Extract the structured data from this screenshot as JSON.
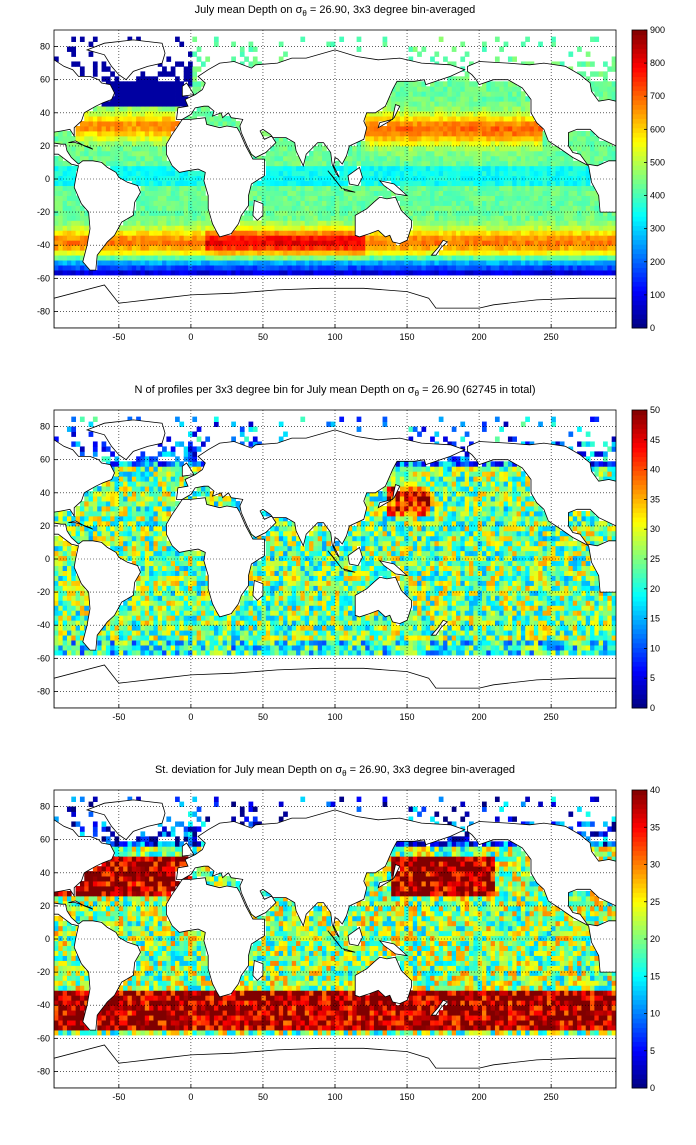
{
  "panels": [
    {
      "title_pre": "July mean Depth on σ",
      "title_sub": "θ",
      "title_post": " = 26.90, 3x3 degree bin-averaged"
    },
    {
      "title_pre": "N of profiles per 3x3 degree bin for July mean Depth on σ",
      "title_sub": "θ",
      "title_post": " = 26.90 (62745 in total)"
    },
    {
      "title_pre": "St. deviation for July mean Depth on σ",
      "title_sub": "θ",
      "title_post": " = 26.90, 3x3 degree bin-averaged"
    }
  ],
  "chart_data": [
    {
      "type": "heatmap",
      "variable": "mean_depth",
      "xlim": [
        -95,
        295
      ],
      "ylim": [
        -90,
        90
      ],
      "xticks": [
        -50,
        0,
        50,
        100,
        150,
        200,
        250
      ],
      "yticks": [
        -80,
        -60,
        -40,
        -20,
        0,
        20,
        40,
        60,
        80
      ],
      "grid": true,
      "colormap": "jet",
      "colorbar": {
        "min": 0,
        "max": 900,
        "ticks": [
          0,
          100,
          200,
          300,
          400,
          500,
          600,
          700,
          800,
          900
        ]
      },
      "bin_size_deg": 3
    },
    {
      "type": "heatmap",
      "variable": "profile_count",
      "xlim": [
        -95,
        295
      ],
      "ylim": [
        -90,
        90
      ],
      "xticks": [
        -50,
        0,
        50,
        100,
        150,
        200,
        250
      ],
      "yticks": [
        -80,
        -60,
        -40,
        -20,
        0,
        20,
        40,
        60,
        80
      ],
      "grid": true,
      "colormap": "jet",
      "colorbar": {
        "min": 0,
        "max": 50,
        "ticks": [
          0,
          5,
          10,
          15,
          20,
          25,
          30,
          35,
          40,
          45,
          50
        ]
      },
      "bin_size_deg": 3,
      "total_profiles": 62745
    },
    {
      "type": "heatmap",
      "variable": "std_depth",
      "xlim": [
        -95,
        295
      ],
      "ylim": [
        -90,
        90
      ],
      "xticks": [
        -50,
        0,
        50,
        100,
        150,
        200,
        250
      ],
      "yticks": [
        -80,
        -60,
        -40,
        -20,
        0,
        20,
        40,
        60,
        80
      ],
      "grid": true,
      "colormap": "jet",
      "colorbar": {
        "min": 0,
        "max": 40,
        "ticks": [
          0,
          5,
          10,
          15,
          20,
          25,
          30,
          35,
          40
        ]
      },
      "bin_size_deg": 3
    }
  ]
}
